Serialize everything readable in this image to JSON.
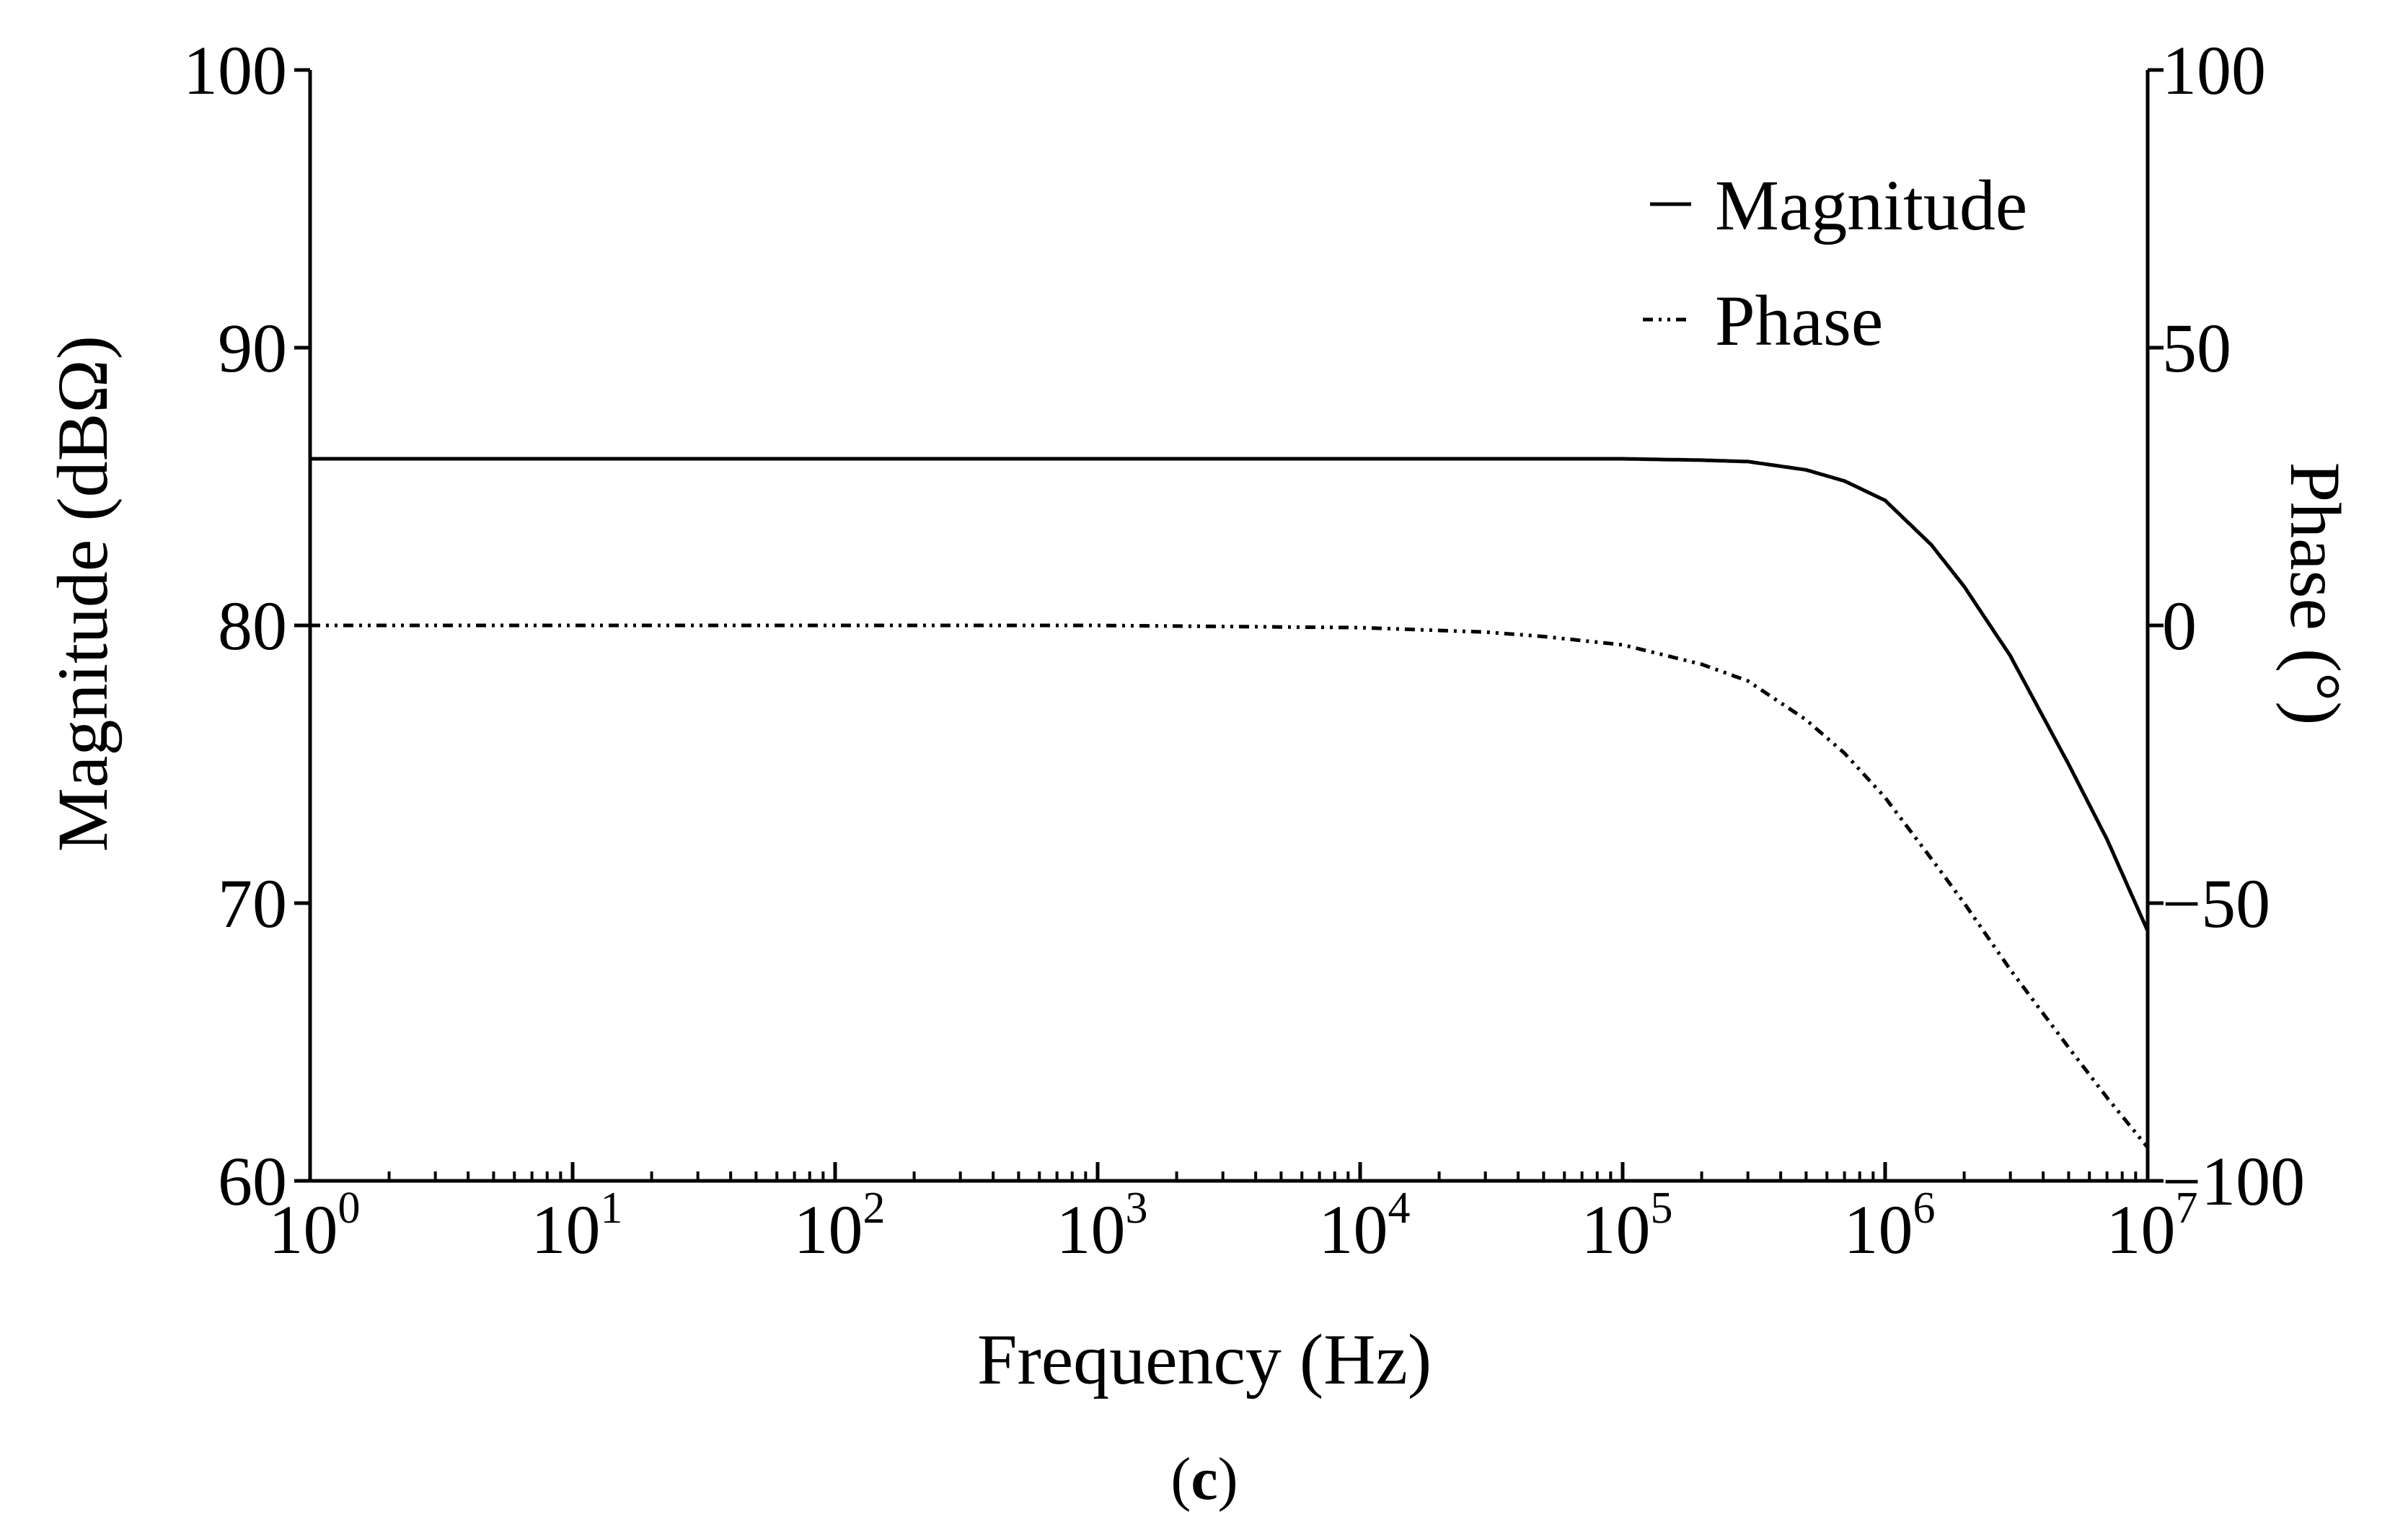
{
  "chart_data": {
    "type": "line",
    "title": "",
    "caption": {
      "open": "(",
      "letter": "c",
      "close": ")"
    },
    "xlabel": "Frequency (Hz)",
    "x_scale": "log",
    "xlim": [
      1,
      10000000
    ],
    "x_ticks": [
      {
        "base": "10",
        "exp": "0"
      },
      {
        "base": "10",
        "exp": "1"
      },
      {
        "base": "10",
        "exp": "2"
      },
      {
        "base": "10",
        "exp": "3"
      },
      {
        "base": "10",
        "exp": "4"
      },
      {
        "base": "10",
        "exp": "5"
      },
      {
        "base": "10",
        "exp": "6"
      },
      {
        "base": "10",
        "exp": "7"
      }
    ],
    "ylabel_left": "Magnitude (dBΩ)",
    "ylim_left": [
      60,
      100
    ],
    "yticks_left": [
      "60",
      "70",
      "80",
      "90",
      "100"
    ],
    "ylabel_right": "Phase (°)",
    "ylim_right": [
      -100,
      100
    ],
    "yticks_right": [
      "−100",
      "−50",
      "0",
      "50",
      "100"
    ],
    "legend_position": "top-right",
    "grid": false,
    "series": [
      {
        "name": "Magnitude",
        "axis": "left",
        "line_style": "solid",
        "color": "#000000",
        "x": [
          1,
          10,
          100,
          1000,
          10000,
          100000,
          200000,
          300000,
          500000,
          700000,
          1000000,
          1500000,
          2000000,
          3000000,
          5000000,
          7000000,
          10000000
        ],
        "values": [
          86,
          86,
          86,
          86,
          86,
          86,
          85.95,
          85.9,
          85.6,
          85.2,
          84.5,
          82.9,
          81.4,
          78.9,
          75.0,
          72.3,
          69.0
        ]
      },
      {
        "name": "Phase",
        "axis": "right",
        "line_style": "dash-dot-dot",
        "color": "#000000",
        "x": [
          1,
          10,
          100,
          1000,
          10000,
          30000,
          50000,
          100000,
          200000,
          300000,
          500000,
          700000,
          1000000,
          1500000,
          2000000,
          3000000,
          5000000,
          7000000,
          10000000
        ],
        "values": [
          0,
          0,
          0,
          0,
          -0.4,
          -1.2,
          -2.0,
          -3.5,
          -7.0,
          -10.0,
          -17.0,
          -23.0,
          -31.0,
          -42.0,
          -50.0,
          -62.0,
          -76.0,
          -85.0,
          -94.0
        ]
      }
    ]
  }
}
